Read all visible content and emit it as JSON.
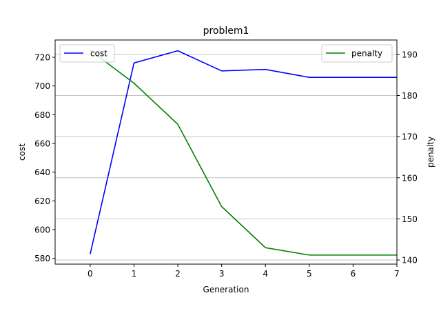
{
  "chart_data": {
    "type": "line",
    "title": "problem1",
    "xlabel": "Generation",
    "ylabel_left": "cost",
    "ylabel_right": "penalty",
    "x": [
      0,
      1,
      2,
      3,
      4,
      5,
      6,
      7
    ],
    "xlim": [
      -0.8,
      7
    ],
    "xticks": [
      "0",
      "1",
      "2",
      "3",
      "4",
      "5",
      "6",
      "7"
    ],
    "ylim_left": [
      576,
      732
    ],
    "yticks_left": [
      "580",
      "600",
      "620",
      "640",
      "660",
      "680",
      "700",
      "720"
    ],
    "ylim_right": [
      139,
      193.5
    ],
    "yticks_right": [
      "140",
      "150",
      "160",
      "170",
      "180",
      "190"
    ],
    "grid": "horizontal, right axis",
    "series": [
      {
        "name": "cost",
        "axis": "left",
        "color": "#0000ff",
        "values": [
          583,
          716,
          724.5,
          710.5,
          711.5,
          706,
          706,
          706
        ]
      },
      {
        "name": "penalty",
        "axis": "right",
        "color": "#008000",
        "values": [
          191,
          183,
          173,
          153,
          143,
          141.2,
          141.2,
          141.2
        ]
      }
    ],
    "legends": [
      {
        "series": "cost",
        "placement": "upper-left"
      },
      {
        "series": "penalty",
        "placement": "upper-right"
      }
    ]
  }
}
